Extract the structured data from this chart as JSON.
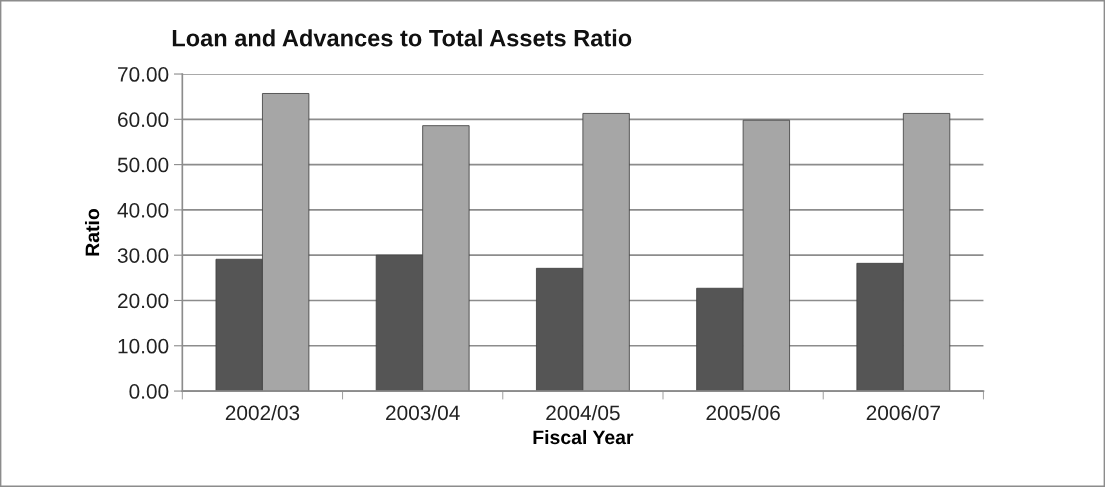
{
  "chart_data": {
    "type": "bar",
    "title": "Loan and Advances to Total Assets Ratio",
    "xlabel": "Fiscal Year",
    "ylabel": "Ratio",
    "categories": [
      "2002/03",
      "2003/04",
      "2004/05",
      "2005/06",
      "2006/07"
    ],
    "series": [
      {
        "color": "#555555",
        "values": [
          29.1,
          30.0,
          27.1,
          22.7,
          28.2
        ]
      },
      {
        "color": "#a6a6a6",
        "values": [
          65.7,
          58.6,
          61.3,
          59.8,
          61.3
        ]
      }
    ],
    "ylim": [
      0,
      70
    ],
    "yticks": [
      {
        "value": 0,
        "label": "0.00"
      },
      {
        "value": 10,
        "label": "10.00"
      },
      {
        "value": 20,
        "label": "20.00"
      },
      {
        "value": 30,
        "label": "30.00"
      },
      {
        "value": 40,
        "label": "40.00"
      },
      {
        "value": 50,
        "label": "50.00"
      },
      {
        "value": 60,
        "label": "60.00"
      },
      {
        "value": 70,
        "label": "70.00"
      }
    ],
    "grid": "y"
  }
}
